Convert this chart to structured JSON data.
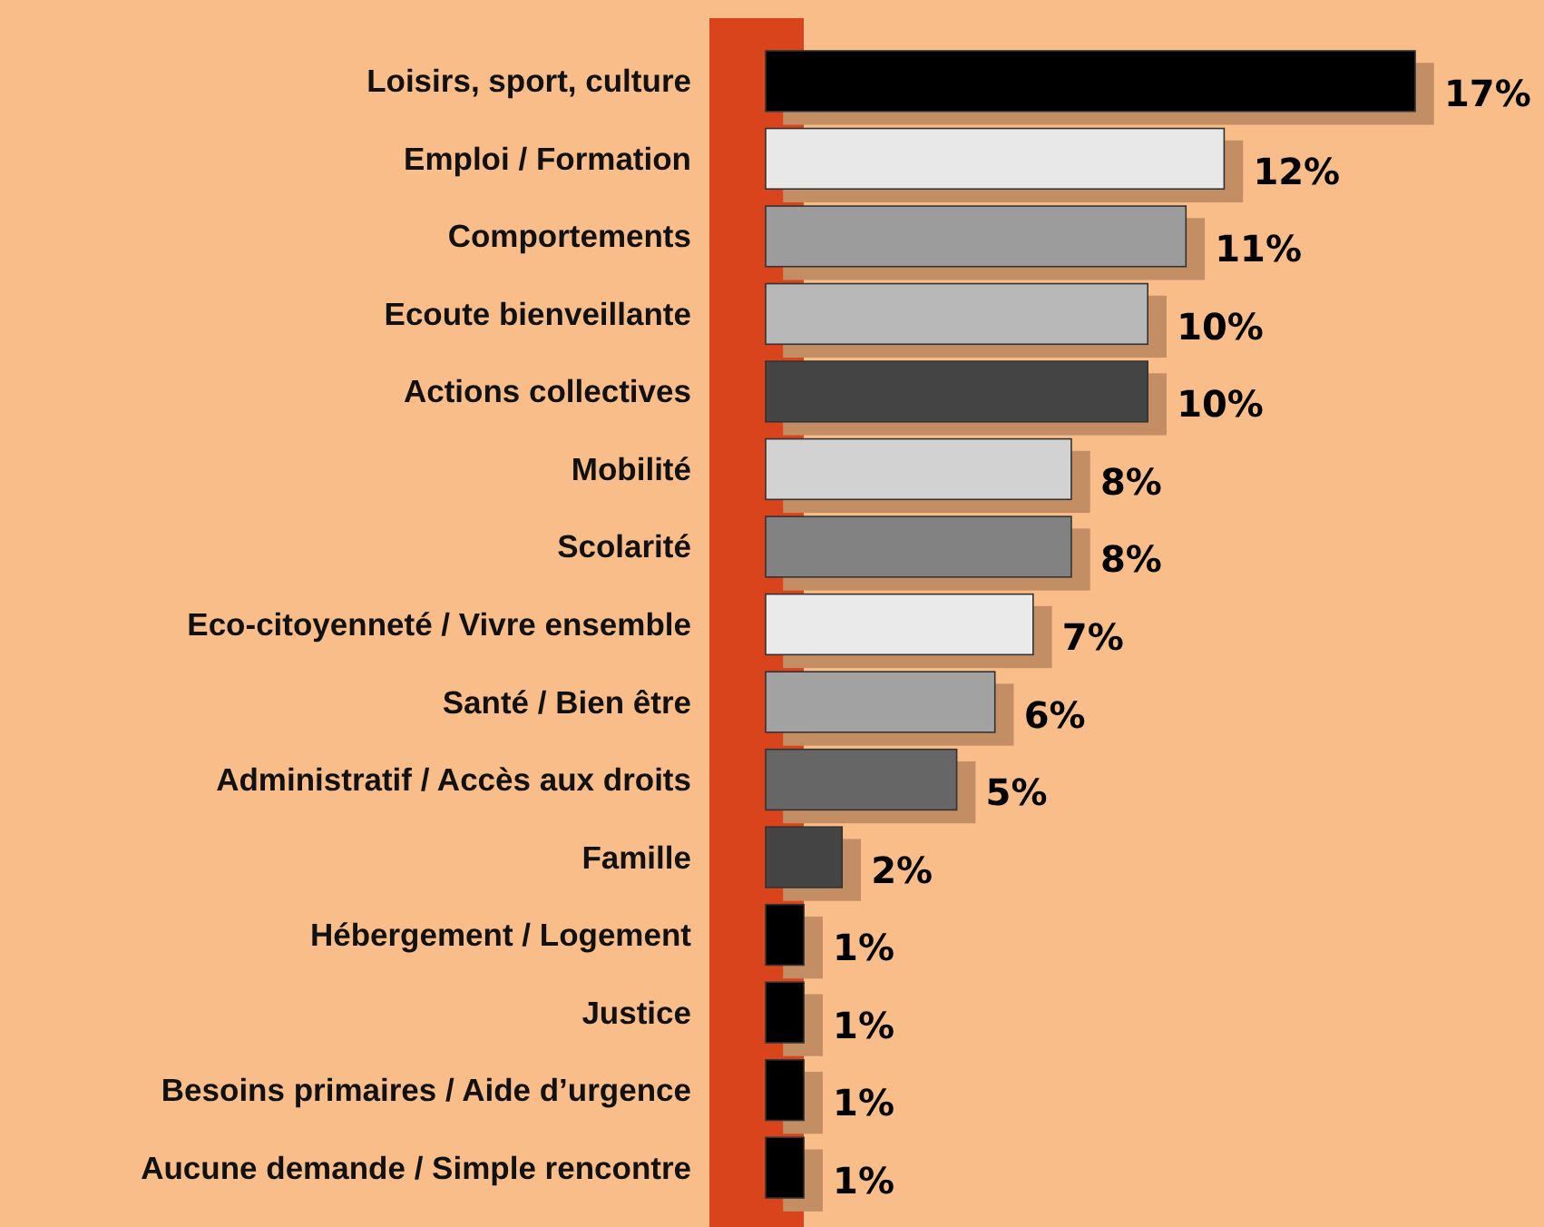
{
  "chart_data": {
    "type": "bar",
    "orientation": "horizontal",
    "categories": [
      "Loisirs, sport, culture",
      "Emploi / Formation",
      "Comportements",
      "Ecoute bienveillante",
      "Actions collectives",
      "Mobilité",
      "Scolarité",
      "Eco-citoyenneté / Vivre ensemble",
      "Santé / Bien être",
      "Administratif / Accès aux droits",
      "Famille",
      "Hébergement / Logement",
      "Justice",
      "Besoins primaires / Aide d’urgence",
      "Aucune demande / Simple rencontre"
    ],
    "values": [
      17,
      12,
      11,
      10,
      10,
      8,
      8,
      7,
      6,
      5,
      2,
      1,
      1,
      1,
      1
    ],
    "colors": [
      "#000000",
      "#e8e8e8",
      "#9c9c9c",
      "#b8b8b8",
      "#444444",
      "#d2d2d2",
      "#828282",
      "#eaeaea",
      "#a2a2a2",
      "#666666",
      "#444444",
      "#000000",
      "#000000",
      "#000000",
      "#000000"
    ],
    "value_labels": [
      "17%",
      "12%",
      "11%",
      "10%",
      "10%",
      "8%",
      "8%",
      "7%",
      "6%",
      "5%",
      "2%",
      "1%",
      "1%",
      "1%",
      "1%"
    ]
  }
}
